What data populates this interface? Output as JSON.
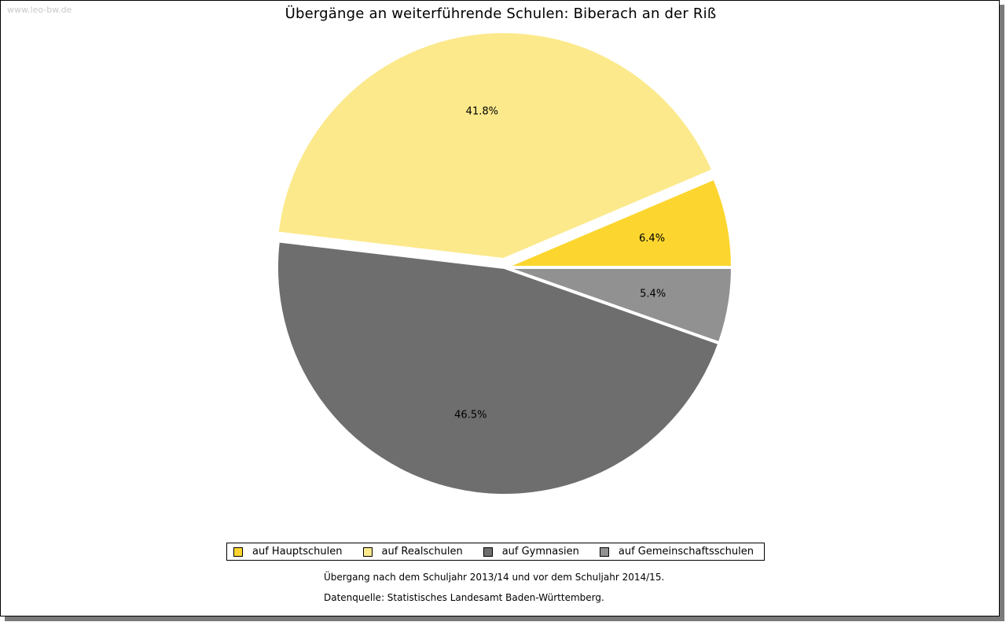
{
  "watermark": "www.leo-bw.de",
  "chart_data": {
    "type": "pie",
    "title": "Übergänge an weiterführende Schulen: Biberach an der Riß",
    "slices": [
      {
        "name": "auf Hauptschulen",
        "value": 6.4,
        "label": "6.4%",
        "color": "#fcd62f"
      },
      {
        "name": "auf Realschulen",
        "value": 41.8,
        "label": "41.8%",
        "color": "#fce98b"
      },
      {
        "name": "auf Gymnasien",
        "value": 46.5,
        "label": "46.5%",
        "color": "#6e6e6e"
      },
      {
        "name": "auf Gemeinschaftsschulen",
        "value": 5.4,
        "label": "5.4%",
        "color": "#919191"
      }
    ],
    "start": "3 o'clock",
    "direction": "counterclockwise",
    "exploded": "auf Realschulen",
    "legend_position": "bottom"
  },
  "notes": {
    "line1": "Übergang nach dem Schuljahr 2013/14 und vor dem Schuljahr 2014/15.",
    "line2": "Datenquelle: Statistisches Landesamt Baden-Württemberg."
  }
}
